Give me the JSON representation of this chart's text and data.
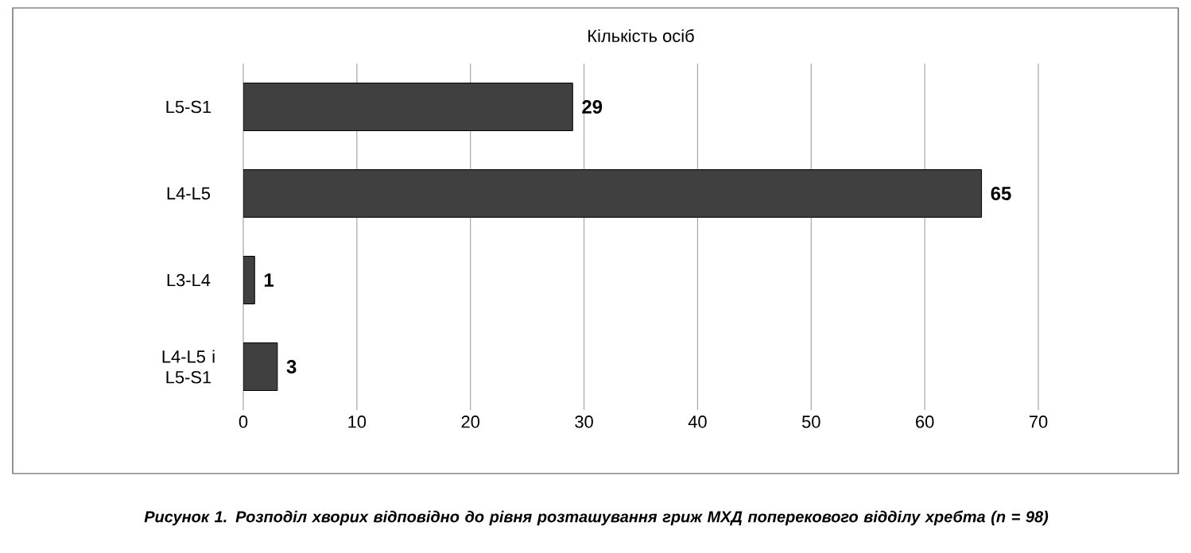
{
  "chart_data": {
    "type": "bar",
    "orientation": "horizontal",
    "title": "Кількість осіб",
    "categories": [
      "L5-S1",
      "L4-L5",
      "L3-L4",
      "L4-L5 i L5-S1"
    ],
    "values": [
      29,
      65,
      1,
      3
    ],
    "color": "#404040",
    "xlim": [
      0,
      70
    ],
    "xticks": [
      0,
      10,
      20,
      30,
      40,
      50,
      60,
      70
    ],
    "grid": "x",
    "data_labels": true,
    "annotations": [
      "Рисунок 1. Розподіл хворих відповідно до рівня розташування гриж МХД поперекового відділу хребта (n = 98)"
    ]
  }
}
